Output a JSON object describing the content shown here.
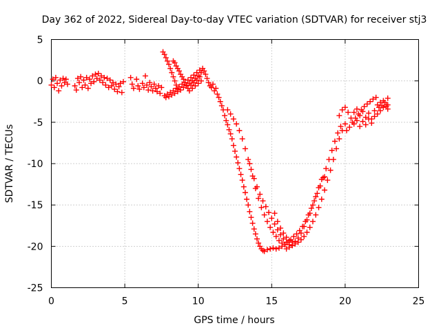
{
  "chart_data": {
    "type": "scatter",
    "title": "Day 362 of 2022, Sidereal Day-to-day VTEC variation (SDTVAR) for receiver stj3",
    "xlabel": "GPS time / hours",
    "ylabel": "SDTVAR / TECUs",
    "xlim": [
      0,
      25
    ],
    "ylim": [
      -25,
      5
    ],
    "xticks": [
      "0",
      "5",
      "10",
      "15",
      "20",
      "25"
    ],
    "yticks": [
      "5",
      "0",
      "-5",
      "-10",
      "-15",
      "-20",
      "-25"
    ],
    "grid": true,
    "marker": "+",
    "color": "#ff0000",
    "series": [
      {
        "name": "SDTVAR",
        "points": [
          [
            0.0,
            -0.5
          ],
          [
            0.1,
            0.2
          ],
          [
            0.2,
            -0.8
          ],
          [
            0.3,
            0.4
          ],
          [
            0.4,
            -0.3
          ],
          [
            0.5,
            -1.2
          ],
          [
            0.6,
            0.1
          ],
          [
            0.7,
            -0.6
          ],
          [
            0.8,
            0.3
          ],
          [
            0.9,
            -0.2
          ],
          [
            1.0,
            0.2
          ],
          [
            1.1,
            -0.4
          ],
          [
            1.6,
            -0.6
          ],
          [
            1.7,
            -1.1
          ],
          [
            1.8,
            0.3
          ],
          [
            1.9,
            -0.2
          ],
          [
            2.0,
            0.5
          ],
          [
            2.1,
            -0.8
          ],
          [
            2.2,
            0.1
          ],
          [
            2.3,
            -0.5
          ],
          [
            2.4,
            0.4
          ],
          [
            2.5,
            -0.9
          ],
          [
            2.6,
            0.2
          ],
          [
            2.7,
            -0.3
          ],
          [
            2.8,
            0.6
          ],
          [
            2.9,
            -0.1
          ],
          [
            3.0,
            0.8
          ],
          [
            3.1,
            0.3
          ],
          [
            3.2,
            0.9
          ],
          [
            3.3,
            0.1
          ],
          [
            3.4,
            0.6
          ],
          [
            3.5,
            -0.2
          ],
          [
            3.6,
            0.4
          ],
          [
            3.7,
            -0.5
          ],
          [
            3.8,
            0.3
          ],
          [
            3.9,
            -0.8
          ],
          [
            4.0,
            0.1
          ],
          [
            4.1,
            -0.6
          ],
          [
            4.2,
            -0.2
          ],
          [
            4.3,
            -1.0
          ],
          [
            4.4,
            -0.4
          ],
          [
            4.5,
            -1.3
          ],
          [
            4.6,
            -0.7
          ],
          [
            4.7,
            -0.3
          ],
          [
            4.8,
            -1.4
          ],
          [
            4.9,
            -0.1
          ],
          [
            5.4,
            0.4
          ],
          [
            5.5,
            -0.4
          ],
          [
            5.6,
            -0.9
          ],
          [
            5.8,
            0.2
          ],
          [
            5.9,
            -0.6
          ],
          [
            6.0,
            -1.0
          ],
          [
            6.2,
            -0.3
          ],
          [
            6.3,
            -0.8
          ],
          [
            6.4,
            0.6
          ],
          [
            6.5,
            -0.5
          ],
          [
            6.6,
            -1.1
          ],
          [
            6.7,
            -0.2
          ],
          [
            6.8,
            -0.7
          ],
          [
            6.9,
            -1.2
          ],
          [
            7.0,
            -0.4
          ],
          [
            7.1,
            -0.9
          ],
          [
            7.2,
            -1.3
          ],
          [
            7.3,
            -0.6
          ],
          [
            7.4,
            -1.5
          ],
          [
            7.5,
            -0.8
          ],
          [
            7.6,
            3.5
          ],
          [
            7.7,
            3.2
          ],
          [
            7.8,
            2.8
          ],
          [
            7.9,
            2.4
          ],
          [
            8.0,
            2.0
          ],
          [
            8.1,
            1.5
          ],
          [
            8.2,
            1.0
          ],
          [
            8.3,
            0.5
          ],
          [
            8.4,
            0.0
          ],
          [
            8.5,
            -0.5
          ],
          [
            8.6,
            -1.0
          ],
          [
            7.7,
            -1.8
          ],
          [
            7.8,
            -2.0
          ],
          [
            7.9,
            -1.6
          ],
          [
            8.0,
            -1.9
          ],
          [
            8.1,
            -1.4
          ],
          [
            8.2,
            -1.7
          ],
          [
            8.3,
            -1.2
          ],
          [
            8.4,
            -1.5
          ],
          [
            8.5,
            -0.9
          ],
          [
            8.6,
            -1.3
          ],
          [
            8.7,
            -0.7
          ],
          [
            8.8,
            -1.1
          ],
          [
            8.9,
            -0.4
          ],
          [
            9.0,
            -0.8
          ],
          [
            9.1,
            -0.2
          ],
          [
            9.2,
            -0.5
          ],
          [
            9.3,
            0.1
          ],
          [
            9.4,
            -0.3
          ],
          [
            9.5,
            0.4
          ],
          [
            9.6,
            0.0
          ],
          [
            9.7,
            0.7
          ],
          [
            9.8,
            0.3
          ],
          [
            9.9,
            1.0
          ],
          [
            10.0,
            0.6
          ],
          [
            10.1,
            1.3
          ],
          [
            10.2,
            1.0
          ],
          [
            10.3,
            1.5
          ],
          [
            10.4,
            1.2
          ],
          [
            10.5,
            0.8
          ],
          [
            10.6,
            0.3
          ],
          [
            10.7,
            -0.2
          ],
          [
            10.8,
            -0.6
          ],
          [
            8.3,
            2.4
          ],
          [
            8.4,
            2.2
          ],
          [
            8.5,
            1.8
          ],
          [
            8.6,
            1.5
          ],
          [
            8.7,
            1.2
          ],
          [
            8.8,
            0.8
          ],
          [
            8.9,
            0.5
          ],
          [
            9.0,
            0.2
          ],
          [
            9.1,
            -0.2
          ],
          [
            9.2,
            -0.6
          ],
          [
            9.3,
            -0.9
          ],
          [
            9.4,
            -1.2
          ],
          [
            9.5,
            -0.5
          ],
          [
            9.6,
            -0.9
          ],
          [
            9.7,
            -0.2
          ],
          [
            9.8,
            -0.6
          ],
          [
            9.9,
            0.1
          ],
          [
            10.0,
            -0.3
          ],
          [
            10.1,
            0.5
          ],
          [
            10.2,
            0.0
          ],
          [
            10.9,
            -0.8
          ],
          [
            11.0,
            -0.4
          ],
          [
            11.1,
            -1.2
          ],
          [
            11.2,
            -0.9
          ],
          [
            11.3,
            -1.6
          ],
          [
            11.4,
            -2.0
          ],
          [
            11.5,
            -2.5
          ],
          [
            11.6,
            -3.0
          ],
          [
            11.7,
            -3.5
          ],
          [
            11.8,
            -4.2
          ],
          [
            11.9,
            -4.8
          ],
          [
            12.0,
            -5.3
          ],
          [
            12.1,
            -5.9
          ],
          [
            12.2,
            -6.4
          ],
          [
            12.3,
            -7.0
          ],
          [
            12.4,
            -7.8
          ],
          [
            12.5,
            -8.5
          ],
          [
            12.6,
            -9.2
          ],
          [
            12.7,
            -9.9
          ],
          [
            12.8,
            -10.6
          ],
          [
            12.9,
            -11.3
          ],
          [
            13.0,
            -12.0
          ],
          [
            13.1,
            -12.8
          ],
          [
            13.2,
            -13.5
          ],
          [
            13.3,
            -14.3
          ],
          [
            13.4,
            -15.0
          ],
          [
            13.5,
            -15.8
          ],
          [
            13.6,
            -16.5
          ],
          [
            13.7,
            -17.2
          ],
          [
            13.8,
            -17.9
          ],
          [
            13.9,
            -18.5
          ],
          [
            14.0,
            -19.1
          ],
          [
            14.1,
            -19.6
          ],
          [
            14.2,
            -20.0
          ],
          [
            14.3,
            -20.3
          ],
          [
            14.4,
            -20.5
          ],
          [
            12.0,
            -3.5
          ],
          [
            12.2,
            -4.0
          ],
          [
            12.4,
            -4.6
          ],
          [
            12.6,
            -5.2
          ],
          [
            12.8,
            -6.0
          ],
          [
            13.0,
            -7.0
          ],
          [
            13.2,
            -8.2
          ],
          [
            13.4,
            -9.5
          ],
          [
            13.6,
            -10.7
          ],
          [
            13.8,
            -11.8
          ],
          [
            14.0,
            -12.8
          ],
          [
            14.2,
            -13.7
          ],
          [
            14.4,
            -14.5
          ],
          [
            14.6,
            -15.2
          ],
          [
            14.8,
            -15.9
          ],
          [
            15.0,
            -16.6
          ],
          [
            15.2,
            -17.3
          ],
          [
            15.4,
            -18.0
          ],
          [
            15.6,
            -18.6
          ],
          [
            15.8,
            -19.1
          ],
          [
            16.0,
            -19.5
          ],
          [
            16.2,
            -19.8
          ],
          [
            16.4,
            -19.9
          ],
          [
            13.5,
            -10.0
          ],
          [
            13.7,
            -11.5
          ],
          [
            13.9,
            -13.0
          ],
          [
            14.1,
            -14.2
          ],
          [
            14.3,
            -15.3
          ],
          [
            14.5,
            -16.2
          ],
          [
            14.7,
            -17.0
          ],
          [
            14.9,
            -17.7
          ],
          [
            15.1,
            -18.3
          ],
          [
            15.3,
            -18.8
          ],
          [
            15.5,
            -19.3
          ],
          [
            15.7,
            -19.6
          ],
          [
            15.9,
            -19.8
          ],
          [
            14.5,
            -20.6
          ],
          [
            14.7,
            -20.4
          ],
          [
            14.9,
            -20.3
          ],
          [
            15.1,
            -20.2
          ],
          [
            15.3,
            -20.3
          ],
          [
            15.5,
            -20.2
          ],
          [
            15.7,
            -20.0
          ],
          [
            15.9,
            -19.8
          ],
          [
            16.1,
            -19.5
          ],
          [
            16.3,
            -19.2
          ],
          [
            16.5,
            -18.8
          ],
          [
            16.7,
            -18.5
          ],
          [
            16.9,
            -18.1
          ],
          [
            17.1,
            -17.6
          ],
          [
            17.3,
            -17.0
          ],
          [
            17.5,
            -16.2
          ],
          [
            17.7,
            -15.4
          ],
          [
            17.9,
            -14.5
          ],
          [
            18.1,
            -13.6
          ],
          [
            18.3,
            -12.7
          ],
          [
            18.5,
            -11.7
          ],
          [
            18.7,
            -10.6
          ],
          [
            18.9,
            -9.5
          ],
          [
            19.1,
            -8.4
          ],
          [
            19.3,
            -7.3
          ],
          [
            19.5,
            -6.3
          ],
          [
            19.7,
            -5.5
          ],
          [
            16.0,
            -20.3
          ],
          [
            16.2,
            -20.1
          ],
          [
            16.4,
            -19.9
          ],
          [
            16.6,
            -19.7
          ],
          [
            16.8,
            -19.5
          ],
          [
            17.0,
            -19.2
          ],
          [
            17.2,
            -18.8
          ],
          [
            17.4,
            -18.3
          ],
          [
            17.6,
            -17.7
          ],
          [
            17.8,
            -17.0
          ],
          [
            18.0,
            -16.2
          ],
          [
            18.2,
            -15.3
          ],
          [
            18.4,
            -14.3
          ],
          [
            18.6,
            -13.2
          ],
          [
            18.8,
            -12.0
          ],
          [
            19.0,
            -10.8
          ],
          [
            19.2,
            -9.5
          ],
          [
            19.4,
            -8.2
          ],
          [
            19.6,
            -7.0
          ],
          [
            19.8,
            -6.0
          ],
          [
            20.0,
            -5.2
          ],
          [
            15.2,
            -16.0
          ],
          [
            15.4,
            -17.0
          ],
          [
            15.6,
            -17.8
          ],
          [
            15.8,
            -18.4
          ],
          [
            16.0,
            -18.9
          ],
          [
            16.2,
            -19.3
          ],
          [
            16.4,
            -19.5
          ],
          [
            16.6,
            -19.4
          ],
          [
            16.8,
            -19.0
          ],
          [
            17.0,
            -18.4
          ],
          [
            17.2,
            -17.6
          ],
          [
            17.4,
            -16.8
          ],
          [
            17.6,
            -16.0
          ],
          [
            17.8,
            -15.0
          ],
          [
            18.0,
            -14.0
          ],
          [
            18.2,
            -12.9
          ],
          [
            18.4,
            -11.9
          ],
          [
            18.6,
            -11.6
          ],
          [
            19.6,
            -4.2
          ],
          [
            19.8,
            -3.5
          ],
          [
            20.0,
            -3.2
          ],
          [
            20.2,
            -3.8
          ],
          [
            20.4,
            -4.5
          ],
          [
            20.6,
            -5.2
          ],
          [
            20.8,
            -4.8
          ],
          [
            21.0,
            -5.5
          ],
          [
            21.2,
            -4.9
          ],
          [
            21.4,
            -5.3
          ],
          [
            21.6,
            -4.6
          ],
          [
            21.8,
            -5.1
          ],
          [
            22.0,
            -4.3
          ],
          [
            22.2,
            -4.0
          ],
          [
            22.4,
            -3.6
          ],
          [
            22.6,
            -3.2
          ],
          [
            22.8,
            -2.9
          ],
          [
            20.1,
            -6.0
          ],
          [
            20.3,
            -5.6
          ],
          [
            20.5,
            -5.0
          ],
          [
            20.7,
            -4.5
          ],
          [
            20.9,
            -4.0
          ],
          [
            21.1,
            -3.5
          ],
          [
            21.3,
            -3.1
          ],
          [
            21.5,
            -2.8
          ],
          [
            21.7,
            -2.5
          ],
          [
            21.9,
            -2.2
          ],
          [
            22.1,
            -2.0
          ],
          [
            22.3,
            -3.2
          ],
          [
            22.5,
            -3.0
          ],
          [
            22.7,
            -2.6
          ],
          [
            22.9,
            -2.1
          ],
          [
            22.9,
            -3.4
          ],
          [
            22.9,
            -2.9
          ],
          [
            20.6,
            -3.8
          ],
          [
            20.8,
            -3.4
          ],
          [
            21.0,
            -4.2
          ],
          [
            21.2,
            -3.7
          ],
          [
            21.4,
            -4.4
          ],
          [
            21.6,
            -3.9
          ],
          [
            21.8,
            -4.6
          ],
          [
            22.0,
            -3.6
          ],
          [
            22.2,
            -2.9
          ],
          [
            22.4,
            -2.6
          ],
          [
            22.6,
            -2.4
          ],
          [
            22.8,
            -3.1
          ]
        ]
      }
    ]
  }
}
